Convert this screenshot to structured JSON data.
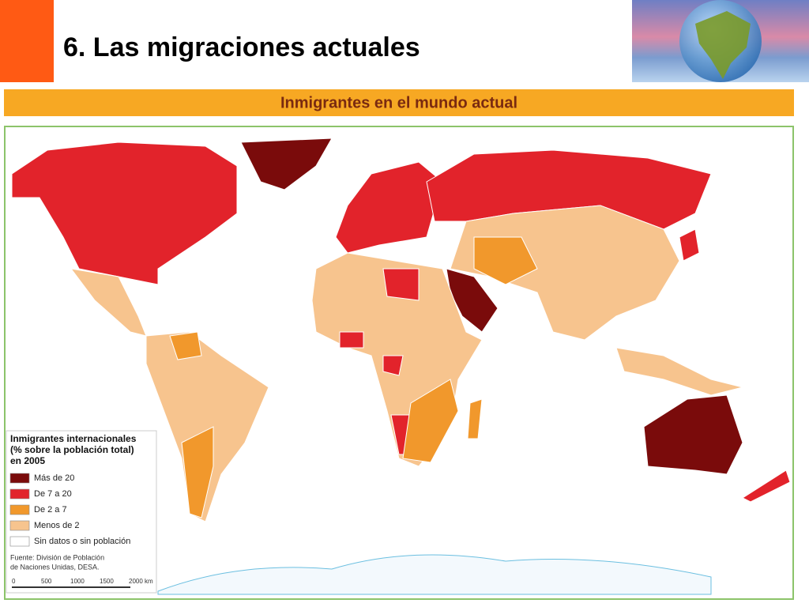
{
  "header": {
    "title": "6. Las migraciones actuales"
  },
  "map": {
    "title": "Inmigrantes en el mundo actual",
    "legend": {
      "title_lines": [
        "Inmigrantes internacionales",
        "(% sobre la población total)",
        "en 2005"
      ],
      "items": [
        {
          "label": "Más de 20",
          "color": "#7a0b0b"
        },
        {
          "label": "De 7 a 20",
          "color": "#e2232b"
        },
        {
          "label": "De 2 a 7",
          "color": "#f1982c"
        },
        {
          "label": "Menos de 2",
          "color": "#f7c48e"
        },
        {
          "label": "Sin datos o sin población",
          "color": "#ffffff"
        }
      ]
    },
    "source_lines": [
      "Fuente: División de Población",
      "de Naciones Unidas, DESA."
    ],
    "scale": [
      "0",
      "500",
      "1000",
      "1500",
      "2000 km"
    ]
  }
}
